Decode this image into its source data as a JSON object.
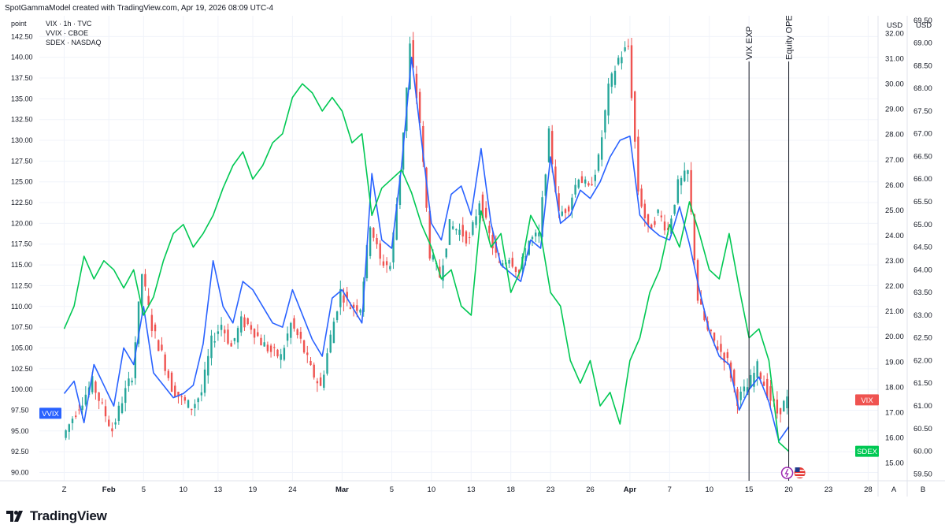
{
  "header": {
    "text": "SpotGammaModel created with TradingView.com, Apr 19, 2026 08:09 UTC-4"
  },
  "footer": {
    "brand": "TradingView"
  },
  "chart_data": {
    "type": "line",
    "legend": [
      "VIX · 1h · TVC",
      "VVIX · CBOE",
      "SDEX · NASDAQ"
    ],
    "left_axis": {
      "unit": "point",
      "range": [
        89.0,
        145.0
      ],
      "ticks": [
        142.5,
        140.0,
        137.5,
        135.0,
        132.5,
        130.0,
        127.5,
        125.0,
        122.5,
        120.0,
        117.5,
        115.0,
        112.5,
        110.0,
        107.5,
        105.0,
        102.5,
        100.0,
        97.5,
        95.0,
        92.5,
        90.0
      ]
    },
    "vix_axis": {
      "unit": "USD",
      "range": [
        14.3,
        32.7
      ],
      "ticks": [
        32.0,
        31.0,
        30.0,
        29.0,
        28.0,
        27.0,
        26.0,
        25.0,
        24.0,
        23.0,
        22.0,
        21.0,
        20.0,
        19.0,
        18.0,
        17.0,
        16.0,
        15.0
      ]
    },
    "sdex_axis": {
      "unit": "USD",
      "range": [
        59.35,
        69.6
      ],
      "ticks": [
        69.5,
        69.0,
        68.5,
        68.0,
        67.5,
        67.0,
        66.5,
        66.0,
        65.5,
        65.0,
        64.5,
        64.0,
        63.5,
        63.0,
        62.5,
        62.0,
        61.5,
        61.0,
        60.5,
        60.0,
        59.5
      ]
    },
    "x_ticks": [
      {
        "label": "Z",
        "t": 0
      },
      {
        "label": "Feb",
        "t": 4.5,
        "bold": true
      },
      {
        "label": "5",
        "t": 8
      },
      {
        "label": "10",
        "t": 12
      },
      {
        "label": "13",
        "t": 15.5
      },
      {
        "label": "19",
        "t": 19
      },
      {
        "label": "24",
        "t": 23
      },
      {
        "label": "Mar",
        "t": 28,
        "bold": true
      },
      {
        "label": "5",
        "t": 33
      },
      {
        "label": "10",
        "t": 37
      },
      {
        "label": "13",
        "t": 41
      },
      {
        "label": "18",
        "t": 45
      },
      {
        "label": "23",
        "t": 49
      },
      {
        "label": "26",
        "t": 53
      },
      {
        "label": "Apr",
        "t": 57,
        "bold": true
      },
      {
        "label": "7",
        "t": 61
      },
      {
        "label": "10",
        "t": 65
      },
      {
        "label": "15",
        "t": 69
      },
      {
        "label": "20",
        "t": 73
      },
      {
        "label": "23",
        "t": 77
      },
      {
        "label": "28",
        "t": 81
      }
    ],
    "series": [
      {
        "name": "VIX",
        "axis": "vix",
        "style": "candles",
        "up_color": "#26a69a",
        "down_color": "#ef5350",
        "points": [
          [
            0,
            16.0
          ],
          [
            1,
            16.8
          ],
          [
            2,
            17.5
          ],
          [
            3,
            18.2
          ],
          [
            4,
            17.2
          ],
          [
            5,
            16.3
          ],
          [
            6,
            17.5
          ],
          [
            7,
            18.5
          ],
          [
            8,
            22.5
          ],
          [
            9,
            20.4
          ],
          [
            10,
            19.3
          ],
          [
            11,
            18.0
          ],
          [
            12,
            17.5
          ],
          [
            13,
            17.2
          ],
          [
            14,
            17.8
          ],
          [
            15,
            19.8
          ],
          [
            16,
            20.5
          ],
          [
            17,
            19.6
          ],
          [
            18,
            20.6
          ],
          [
            19,
            20.4
          ],
          [
            20,
            19.8
          ],
          [
            21,
            19.4
          ],
          [
            22,
            19.2
          ],
          [
            23,
            20.5
          ],
          [
            24,
            19.8
          ],
          [
            25,
            18.7
          ],
          [
            26,
            18.0
          ],
          [
            27,
            20.0
          ],
          [
            28,
            21.8
          ],
          [
            29,
            21.2
          ],
          [
            30,
            21.2
          ],
          [
            31,
            24.5
          ],
          [
            32,
            23.0
          ],
          [
            33,
            22.8
          ],
          [
            34,
            26.5
          ],
          [
            35,
            31.5
          ],
          [
            36,
            28.5
          ],
          [
            37,
            23.3
          ],
          [
            38,
            22.4
          ],
          [
            39,
            24.4
          ],
          [
            40,
            24.2
          ],
          [
            41,
            23.8
          ],
          [
            42,
            25.4
          ],
          [
            43,
            24.0
          ],
          [
            44,
            22.8
          ],
          [
            45,
            23.2
          ],
          [
            46,
            22.5
          ],
          [
            47,
            23.8
          ],
          [
            48,
            24.0
          ],
          [
            49,
            28.0
          ],
          [
            50,
            24.8
          ],
          [
            51,
            25.2
          ],
          [
            52,
            26.4
          ],
          [
            53,
            25.8
          ],
          [
            54,
            27.0
          ],
          [
            55,
            29.8
          ],
          [
            56,
            31.0
          ],
          [
            57,
            31.5
          ],
          [
            58,
            25.8
          ],
          [
            59,
            24.2
          ],
          [
            60,
            24.9
          ],
          [
            61,
            24.2
          ],
          [
            62,
            26.0
          ],
          [
            63,
            26.5
          ],
          [
            64,
            21.5
          ],
          [
            65,
            20.2
          ],
          [
            66,
            19.6
          ],
          [
            67,
            19.0
          ],
          [
            68,
            17.5
          ],
          [
            69,
            18.0
          ],
          [
            70,
            18.8
          ],
          [
            71,
            17.8
          ],
          [
            72,
            17.0
          ],
          [
            73,
            17.5
          ]
        ]
      },
      {
        "name": "VVIX",
        "axis": "left",
        "style": "line",
        "color": "#2962ff",
        "label": "VVIX",
        "points": [
          [
            0,
            99.5
          ],
          [
            1,
            101.0
          ],
          [
            2,
            96.0
          ],
          [
            3,
            103.0
          ],
          [
            4,
            100.5
          ],
          [
            5,
            98.0
          ],
          [
            6,
            105.0
          ],
          [
            7,
            103.0
          ],
          [
            8,
            110.0
          ],
          [
            9,
            102.0
          ],
          [
            10,
            100.5
          ],
          [
            11,
            99.0
          ],
          [
            12,
            99.5
          ],
          [
            13,
            100.5
          ],
          [
            14,
            105.5
          ],
          [
            15,
            115.5
          ],
          [
            16,
            110.0
          ],
          [
            17,
            108.0
          ],
          [
            18,
            113.0
          ],
          [
            19,
            112.0
          ],
          [
            20,
            110.0
          ],
          [
            21,
            108.0
          ],
          [
            22,
            107.5
          ],
          [
            23,
            112.0
          ],
          [
            24,
            109.0
          ],
          [
            25,
            106.0
          ],
          [
            26,
            104.0
          ],
          [
            27,
            111.0
          ],
          [
            28,
            112.0
          ],
          [
            29,
            110.0
          ],
          [
            30,
            108.0
          ],
          [
            31,
            126.0
          ],
          [
            32,
            118.0
          ],
          [
            33,
            117.0
          ],
          [
            34,
            127.0
          ],
          [
            35,
            140.0
          ],
          [
            36,
            130.0
          ],
          [
            37,
            120.0
          ],
          [
            38,
            118.0
          ],
          [
            39,
            123.5
          ],
          [
            40,
            124.5
          ],
          [
            41,
            121.0
          ],
          [
            42,
            129.0
          ],
          [
            43,
            120.0
          ],
          [
            44,
            115.0
          ],
          [
            45,
            114.0
          ],
          [
            46,
            113.0
          ],
          [
            47,
            118.0
          ],
          [
            48,
            117.0
          ],
          [
            49,
            128.0
          ],
          [
            50,
            120.0
          ],
          [
            51,
            121.0
          ],
          [
            52,
            124.0
          ],
          [
            53,
            123.0
          ],
          [
            54,
            125.0
          ],
          [
            55,
            128.0
          ],
          [
            56,
            130.0
          ],
          [
            57,
            130.5
          ],
          [
            58,
            121.0
          ],
          [
            59,
            119.5
          ],
          [
            60,
            118.5
          ],
          [
            61,
            118.0
          ],
          [
            62,
            122.0
          ],
          [
            63,
            117.5
          ],
          [
            64,
            112.0
          ],
          [
            65,
            107.0
          ],
          [
            66,
            104.0
          ],
          [
            67,
            103.0
          ],
          [
            68,
            97.5
          ],
          [
            69,
            100.0
          ],
          [
            70,
            101.5
          ],
          [
            71,
            98.5
          ],
          [
            72,
            93.8
          ],
          [
            73,
            95.5
          ]
        ]
      },
      {
        "name": "SDEX",
        "axis": "sdex",
        "style": "line",
        "color": "#00c853",
        "label": "SDEX",
        "points": [
          [
            0,
            62.7
          ],
          [
            1,
            63.2
          ],
          [
            2,
            64.3
          ],
          [
            3,
            63.8
          ],
          [
            4,
            64.2
          ],
          [
            5,
            64.0
          ],
          [
            6,
            63.6
          ],
          [
            7,
            64.0
          ],
          [
            8,
            63.0
          ],
          [
            9,
            63.4
          ],
          [
            10,
            64.2
          ],
          [
            11,
            64.8
          ],
          [
            12,
            65.0
          ],
          [
            13,
            64.5
          ],
          [
            14,
            64.8
          ],
          [
            15,
            65.2
          ],
          [
            16,
            65.8
          ],
          [
            17,
            66.3
          ],
          [
            18,
            66.6
          ],
          [
            19,
            66.0
          ],
          [
            20,
            66.3
          ],
          [
            21,
            66.8
          ],
          [
            22,
            67.0
          ],
          [
            23,
            67.8
          ],
          [
            24,
            68.1
          ],
          [
            25,
            67.9
          ],
          [
            26,
            67.5
          ],
          [
            27,
            67.8
          ],
          [
            28,
            67.5
          ],
          [
            29,
            66.8
          ],
          [
            30,
            67.0
          ],
          [
            31,
            65.2
          ],
          [
            32,
            65.8
          ],
          [
            33,
            66.0
          ],
          [
            34,
            66.2
          ],
          [
            35,
            65.7
          ],
          [
            36,
            65.0
          ],
          [
            37,
            64.5
          ],
          [
            38,
            63.8
          ],
          [
            39,
            64.0
          ],
          [
            40,
            63.2
          ],
          [
            41,
            63.0
          ],
          [
            42,
            65.3
          ],
          [
            43,
            64.5
          ],
          [
            44,
            64.8
          ],
          [
            45,
            63.5
          ],
          [
            46,
            64.0
          ],
          [
            47,
            65.2
          ],
          [
            48,
            64.8
          ],
          [
            49,
            63.5
          ],
          [
            50,
            63.2
          ],
          [
            51,
            62.0
          ],
          [
            52,
            61.5
          ],
          [
            53,
            62.0
          ],
          [
            54,
            61.0
          ],
          [
            55,
            61.3
          ],
          [
            56,
            60.6
          ],
          [
            57,
            62.0
          ],
          [
            58,
            62.5
          ],
          [
            59,
            63.5
          ],
          [
            60,
            64.0
          ],
          [
            61,
            65.0
          ],
          [
            62,
            64.5
          ],
          [
            63,
            65.5
          ],
          [
            64,
            64.8
          ],
          [
            65,
            64.0
          ],
          [
            66,
            63.8
          ],
          [
            67,
            64.8
          ],
          [
            68,
            63.6
          ],
          [
            69,
            62.5
          ],
          [
            70,
            62.7
          ],
          [
            71,
            62.0
          ],
          [
            72,
            60.2
          ],
          [
            73,
            60.0
          ]
        ]
      }
    ],
    "annotations": [
      {
        "label": "VIX EXP",
        "t": 69
      },
      {
        "label": "Equity OPEX",
        "t": 73
      }
    ],
    "price_labels": [
      {
        "series": "VIX",
        "text": "VIX",
        "color": "#ef5350"
      },
      {
        "series": "SDEX",
        "text": "SDEX",
        "color": "#00c853"
      }
    ],
    "axis_letters": {
      "vix": "A",
      "sdex": "B"
    }
  },
  "colors": {
    "grid": "#f0f3fa",
    "axis_border": "#e0e3eb",
    "vvix": "#2962ff",
    "sdex": "#00c853",
    "vix_up": "#26a69a",
    "vix_down": "#ef5350"
  }
}
